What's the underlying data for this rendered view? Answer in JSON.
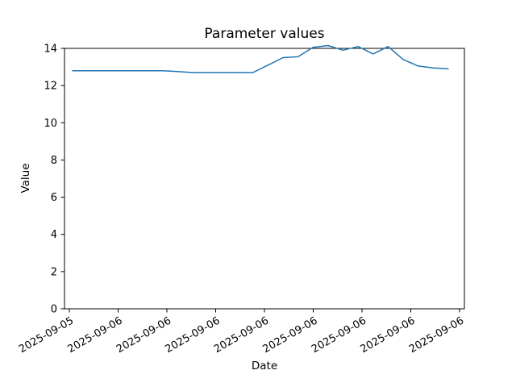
{
  "chart_data": {
    "type": "line",
    "title": "Parameter values",
    "xlabel": "Date",
    "ylabel": "Value",
    "x_tick_labels": [
      "2025-09-05",
      "2025-09-06",
      "2025-09-06",
      "2025-09-06",
      "2025-09-06",
      "2025-09-06",
      "2025-09-06",
      "2025-09-06",
      "2025-09-06"
    ],
    "y_ticks": [
      0,
      2,
      4,
      6,
      8,
      10,
      12,
      14
    ],
    "ylim": [
      0,
      14
    ],
    "grid": false,
    "legend": "none",
    "line_color": "#1f77b4",
    "background_color": "#ffffff",
    "series": [
      {
        "name": "Parameter values",
        "values": [
          12.8,
          12.8,
          12.8,
          12.8,
          12.8,
          12.8,
          12.8,
          12.75,
          12.7,
          12.7,
          12.7,
          12.7,
          12.7,
          13.1,
          13.5,
          13.55,
          14.05,
          14.15,
          13.9,
          14.1,
          13.7,
          14.1,
          13.4,
          13.05,
          12.95,
          12.9
        ]
      }
    ]
  }
}
